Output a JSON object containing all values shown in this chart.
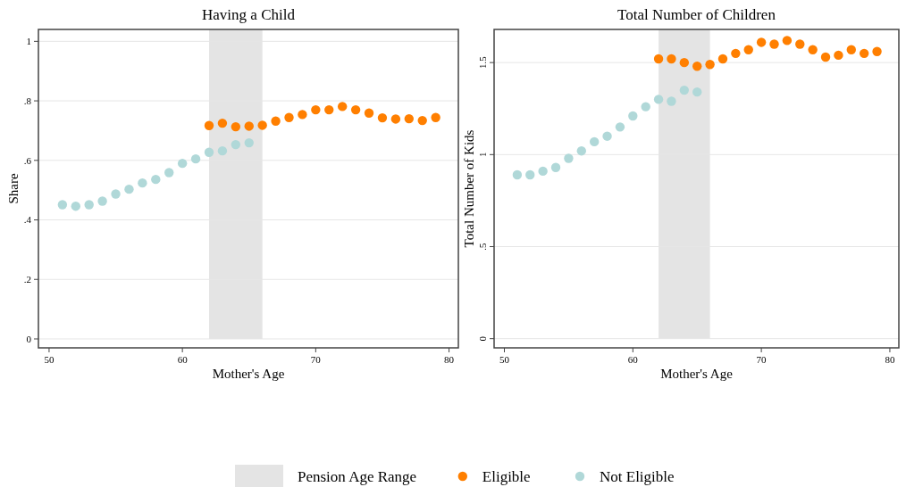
{
  "chart_data": [
    {
      "type": "scatter",
      "title": "Having a Child",
      "xlabel": "Mother's Age",
      "ylabel": "Share",
      "xlim": [
        49.2,
        80.7
      ],
      "xticks": [
        50,
        60,
        70,
        80
      ],
      "ylim": [
        -0.03,
        1.04
      ],
      "yticks": [
        0,
        {
          "value": 0.2,
          "label": ".2"
        },
        {
          "value": 0.4,
          "label": ".4"
        },
        {
          "value": 0.6,
          "label": ".6"
        },
        {
          "value": 0.8,
          "label": ".8"
        },
        1
      ],
      "grid": "y",
      "marker": "circle",
      "legend": "bottom",
      "bands": [
        {
          "axis": "x",
          "from": 62,
          "to": 66,
          "label": "Pension Age Range",
          "color": "#e4e4e4"
        }
      ],
      "series": [
        {
          "name": "Eligible",
          "color": "#ff7f00",
          "x": [
            62,
            63,
            64,
            65,
            66,
            67,
            68,
            69,
            70,
            71,
            72,
            73,
            74,
            75,
            76,
            77,
            78,
            79
          ],
          "values": [
            0.717,
            0.725,
            0.713,
            0.715,
            0.718,
            0.732,
            0.744,
            0.754,
            0.77,
            0.77,
            0.781,
            0.77,
            0.759,
            0.743,
            0.739,
            0.74,
            0.734,
            0.744
          ]
        },
        {
          "name": "Not Eligible",
          "color": "#b0d8d8",
          "x": [
            51,
            52,
            53,
            54,
            55,
            56,
            57,
            58,
            59,
            60,
            61,
            62,
            63,
            64,
            65
          ],
          "values": [
            0.451,
            0.446,
            0.451,
            0.463,
            0.487,
            0.503,
            0.524,
            0.536,
            0.559,
            0.59,
            0.605,
            0.627,
            0.632,
            0.653,
            0.659
          ]
        }
      ]
    },
    {
      "type": "scatter",
      "title": "Total Number of Children",
      "xlabel": "Mother's Age",
      "ylabel": "Total Number of Kids",
      "xlim": [
        49.2,
        80.7
      ],
      "xticks": [
        50,
        60,
        70,
        80
      ],
      "ylim": [
        -0.05,
        1.68
      ],
      "yticks": [
        0,
        {
          "value": 0.5,
          "label": ".5"
        },
        1,
        1.5
      ],
      "grid": "y",
      "marker": "circle",
      "bands": [
        {
          "axis": "x",
          "from": 62,
          "to": 66,
          "color": "#e4e4e4"
        }
      ],
      "series": [
        {
          "color": "#ff7f00",
          "x": [
            62,
            63,
            64,
            65,
            66,
            67,
            68,
            69,
            70,
            71,
            72,
            73,
            74,
            75,
            76,
            77,
            78,
            79
          ],
          "values": [
            1.52,
            1.52,
            1.5,
            1.48,
            1.49,
            1.52,
            1.55,
            1.57,
            1.61,
            1.6,
            1.62,
            1.6,
            1.57,
            1.53,
            1.54,
            1.57,
            1.55,
            1.56
          ]
        },
        {
          "color": "#b0d8d8",
          "x": [
            51,
            52,
            53,
            54,
            55,
            56,
            57,
            58,
            59,
            60,
            61,
            62,
            63,
            64,
            65
          ],
          "values": [
            0.89,
            0.89,
            0.91,
            0.93,
            0.98,
            1.02,
            1.07,
            1.1,
            1.15,
            1.21,
            1.26,
            1.3,
            1.29,
            1.35,
            1.34
          ]
        }
      ]
    }
  ]
}
